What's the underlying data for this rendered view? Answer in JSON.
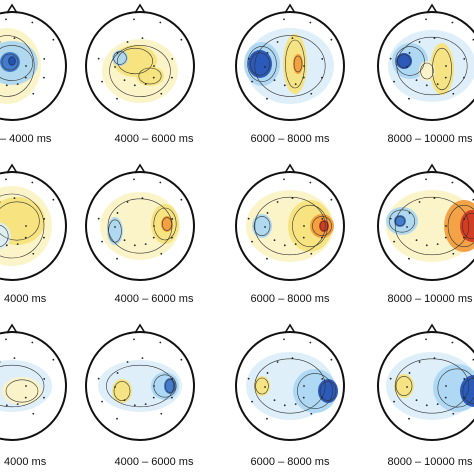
{
  "rows": [
    [
      "– 4000 ms",
      "4000 – 6000 ms",
      "6000 – 8000 ms",
      "8000 – 10000 ms"
    ],
    [
      "4000 ms",
      "4000 – 6000 ms",
      "6000 – 8000 ms",
      "8000 – 10000 ms"
    ],
    [
      "4000 ms",
      "4000 – 6000 ms",
      "6000 – 8000 ms",
      "8000 – 10000 ms"
    ]
  ]
}
